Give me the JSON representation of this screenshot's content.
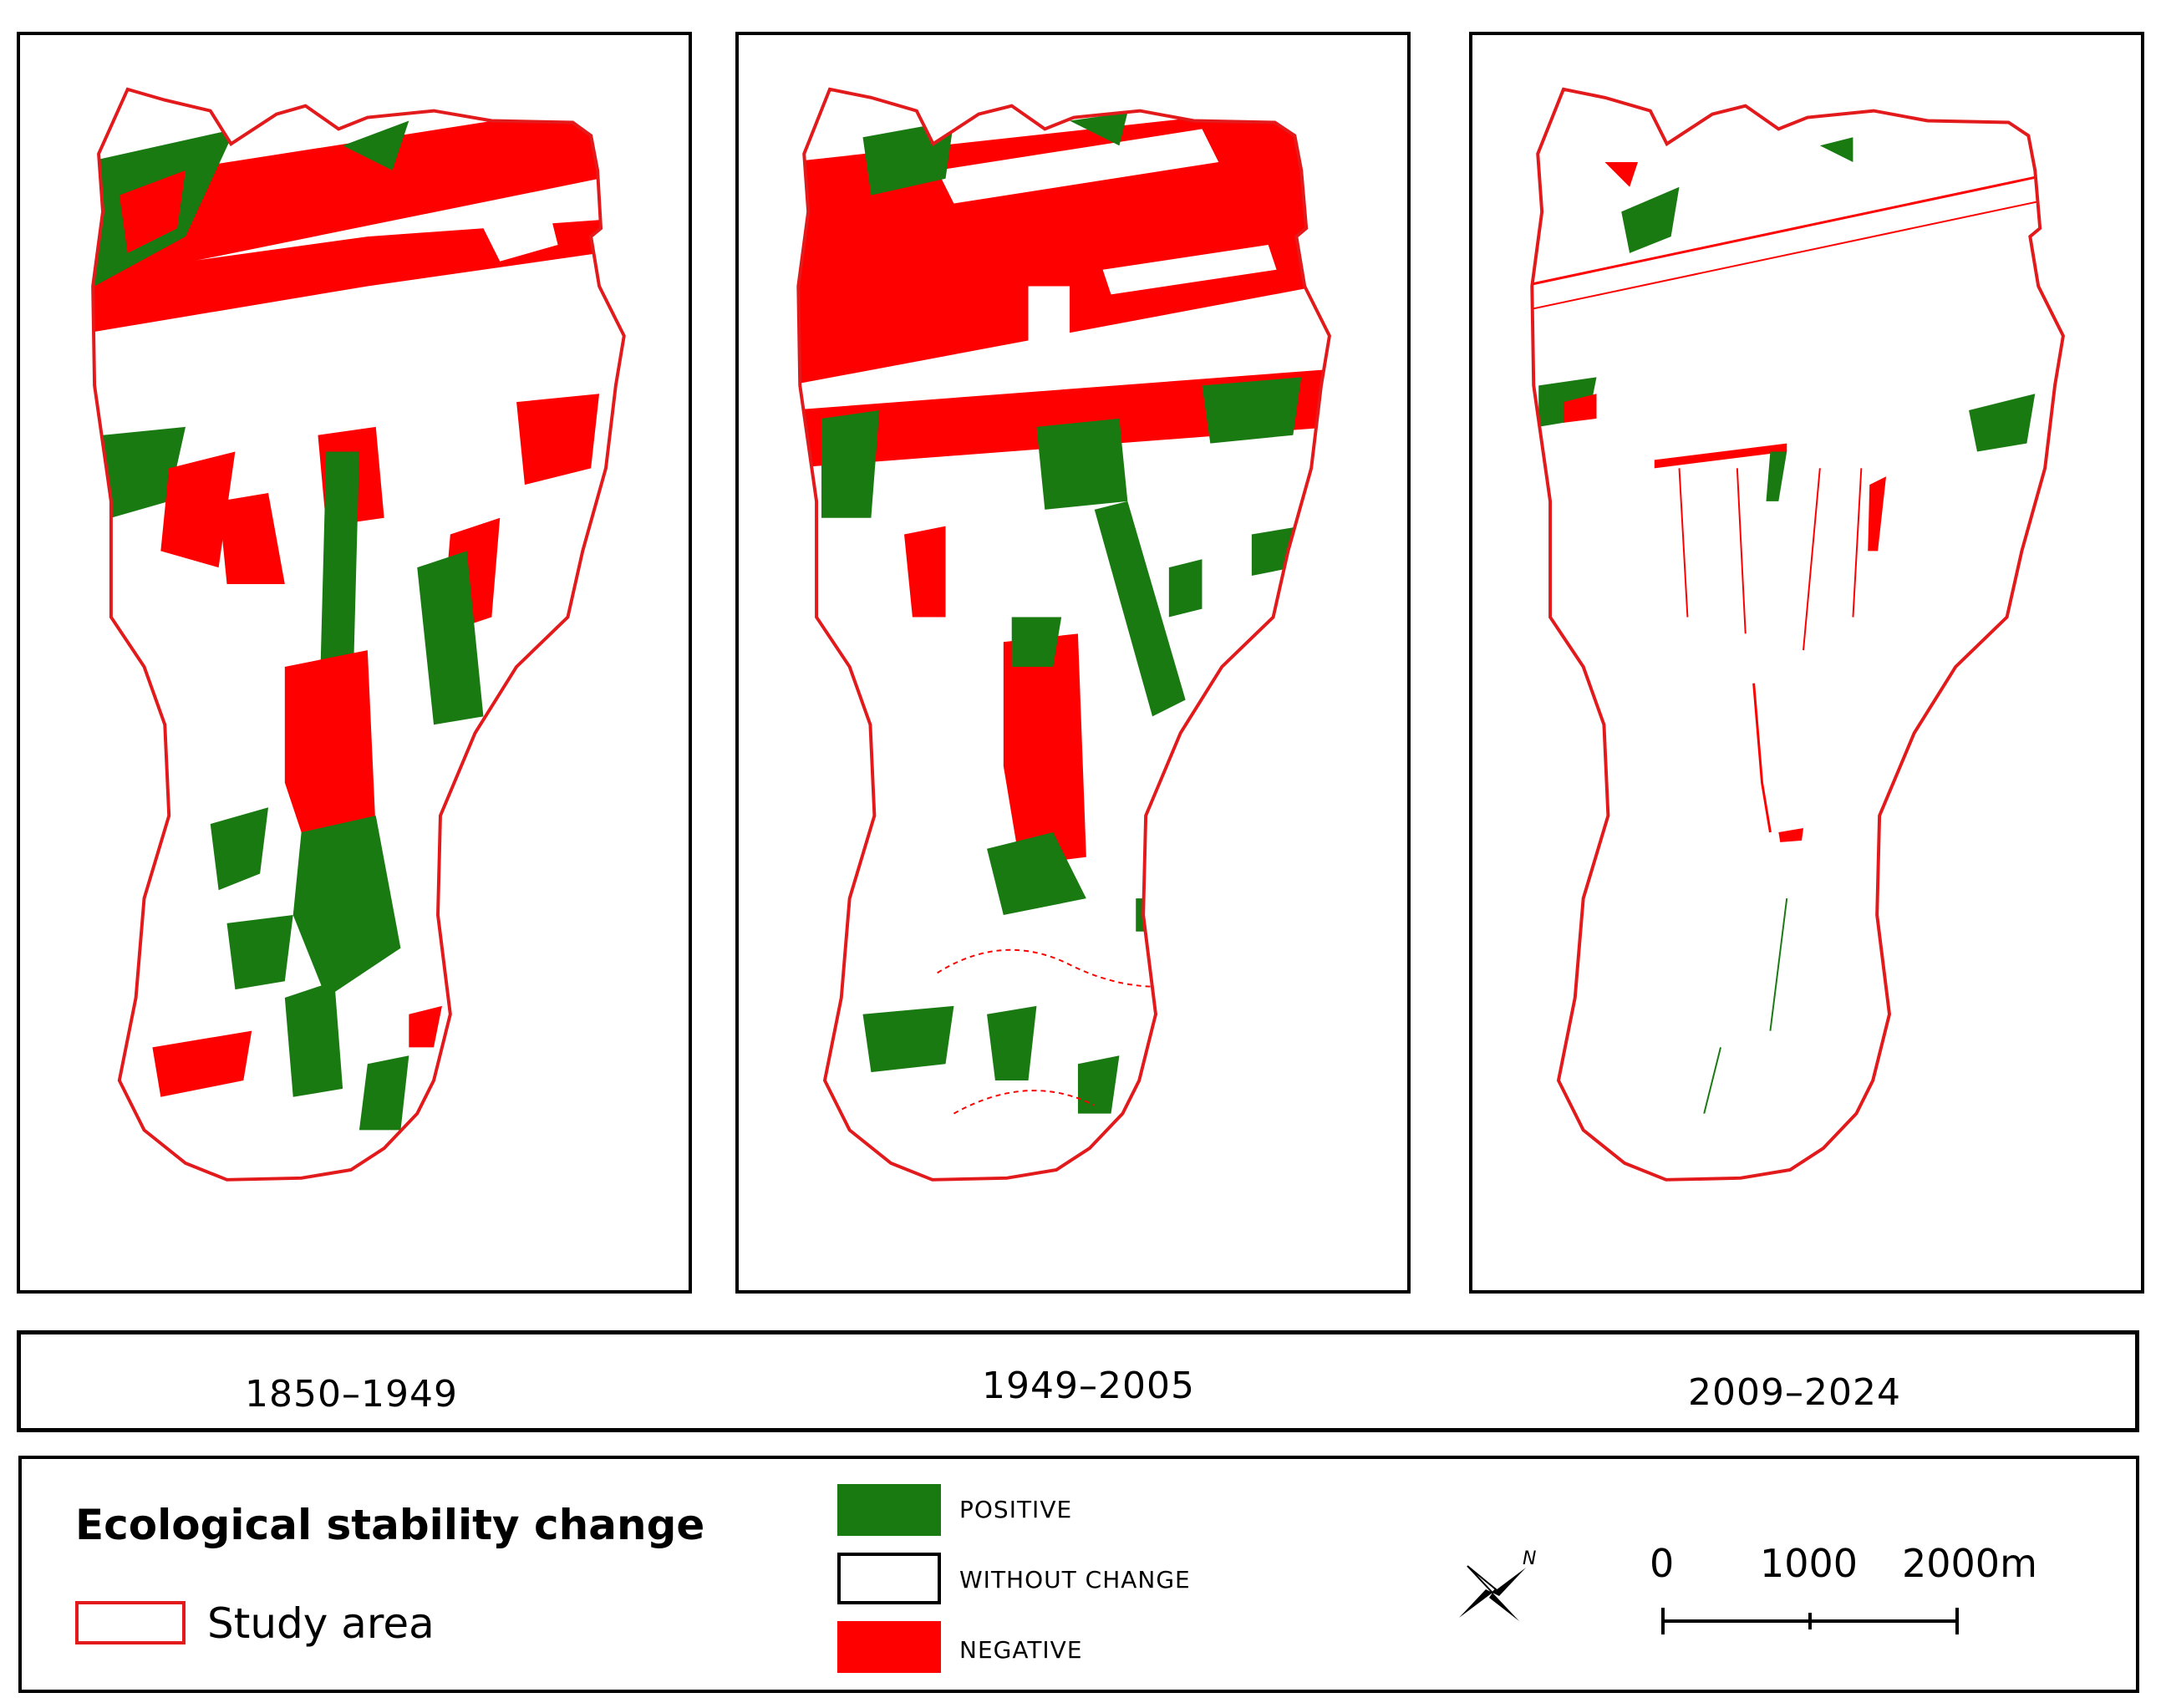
{
  "figure": {
    "panels": [
      {
        "period": "1850–1949"
      },
      {
        "period": "1949–2005"
      },
      {
        "period": "2009–2024"
      }
    ]
  },
  "legend": {
    "title": "Ecological stability change",
    "study_area_label": "Study area",
    "classes": [
      {
        "label": "POSITIVE",
        "color": "#1a7a12"
      },
      {
        "label": "WITHOUT CHANGE",
        "color": "#ffffff"
      },
      {
        "label": "NEGATIVE",
        "color": "#ff0000"
      }
    ],
    "study_area_color": "#e31a1c",
    "north_arrow_label": "N",
    "scale": {
      "ticks": [
        "0",
        "1000",
        "2000m"
      ]
    }
  }
}
